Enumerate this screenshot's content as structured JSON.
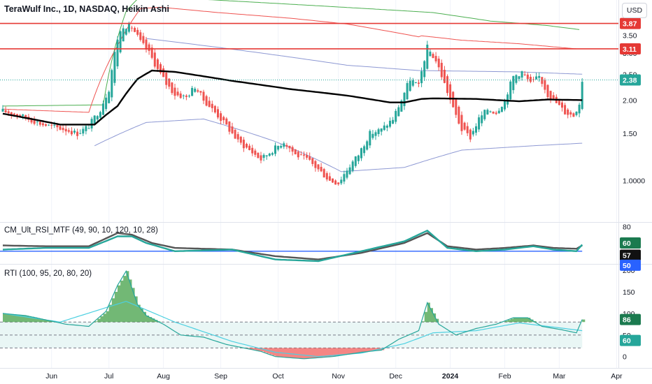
{
  "header": {
    "title": "TeraWulf Inc., 1D, NASDAQ, Heikin Ashi",
    "currency_button": "USD"
  },
  "colors": {
    "up": "#26a69a",
    "down": "#ef5350",
    "hline": "#e53935",
    "current": "#26a69a",
    "ma_thick": "#000000",
    "band_upper": "#ef5350",
    "band_upper2": "#4caf50",
    "band_mid": "#7986cb",
    "rsi_green": "#26a69a",
    "rsi_grey": "#555555",
    "rsi_level": "#2962ff",
    "rti_line": "#26a69a",
    "rti_signal": "#4dd0e1",
    "rti_zone": "#e0f2f1"
  },
  "chart_data": [
    {
      "type": "candlestick",
      "name": "price",
      "title": "TeraWulf Inc., 1D, NASDAQ, Heikin Ashi",
      "y_ticks": [
        "4.00",
        "3.50",
        "3.00",
        "2.50",
        "2.00",
        "1.50",
        "1.0000"
      ],
      "ylim": [
        0.7,
        4.25
      ],
      "scale": "log",
      "x_ticks": [
        "Jun",
        "Jul",
        "Aug",
        "Sep",
        "Oct",
        "Nov",
        "Dec",
        "2024",
        "Feb",
        "Mar",
        "Apr"
      ],
      "horizontal_lines": [
        3.87,
        3.11
      ],
      "current_price": 2.38,
      "price_labels": [
        "3.87",
        "3.11",
        "2.38"
      ],
      "close_path_anchors": [
        [
          0,
          1.82
        ],
        [
          6,
          1.75
        ],
        [
          14,
          1.62
        ],
        [
          22,
          1.55
        ],
        [
          26,
          1.5
        ],
        [
          30,
          1.6
        ],
        [
          34,
          1.85
        ],
        [
          37,
          2.2
        ],
        [
          40,
          3.4
        ],
        [
          42,
          3.8
        ],
        [
          45,
          3.75
        ],
        [
          48,
          3.3
        ],
        [
          51,
          3.0
        ],
        [
          54,
          2.6
        ],
        [
          57,
          2.3
        ],
        [
          60,
          2.1
        ],
        [
          64,
          2.05
        ],
        [
          67,
          2.25
        ],
        [
          70,
          2.0
        ],
        [
          74,
          1.8
        ],
        [
          78,
          1.6
        ],
        [
          82,
          1.4
        ],
        [
          86,
          1.3
        ],
        [
          90,
          1.2
        ],
        [
          94,
          1.3
        ],
        [
          98,
          1.4
        ],
        [
          102,
          1.25
        ],
        [
          106,
          1.2
        ],
        [
          110,
          1.1
        ],
        [
          114,
          1.0
        ],
        [
          117,
          0.98
        ],
        [
          120,
          1.1
        ],
        [
          124,
          1.25
        ],
        [
          128,
          1.5
        ],
        [
          132,
          1.55
        ],
        [
          136,
          1.7
        ],
        [
          139,
          2.0
        ],
        [
          142,
          2.4
        ],
        [
          145,
          2.25
        ],
        [
          148,
          3.15
        ],
        [
          151,
          2.8
        ],
        [
          154,
          2.3
        ],
        [
          157,
          1.85
        ],
        [
          160,
          1.55
        ],
        [
          163,
          1.45
        ],
        [
          166,
          1.7
        ],
        [
          169,
          1.85
        ],
        [
          172,
          1.8
        ],
        [
          175,
          2.0
        ],
        [
          178,
          2.45
        ],
        [
          181,
          2.55
        ],
        [
          184,
          2.3
        ],
        [
          187,
          2.45
        ],
        [
          190,
          2.1
        ],
        [
          193,
          1.95
        ],
        [
          196,
          1.8
        ],
        [
          199,
          1.75
        ],
        [
          201,
          1.95
        ],
        [
          202,
          2.38
        ]
      ],
      "ma_anchors": [
        [
          0,
          1.78
        ],
        [
          20,
          1.62
        ],
        [
          32,
          1.62
        ],
        [
          40,
          1.9
        ],
        [
          47,
          2.4
        ],
        [
          52,
          2.58
        ],
        [
          60,
          2.55
        ],
        [
          80,
          2.36
        ],
        [
          100,
          2.2
        ],
        [
          120,
          2.08
        ],
        [
          135,
          1.96
        ],
        [
          140,
          1.96
        ],
        [
          146,
          2.02
        ],
        [
          150,
          2.03
        ],
        [
          165,
          2.02
        ],
        [
          180,
          1.98
        ],
        [
          190,
          2.01
        ],
        [
          202,
          2.0
        ]
      ],
      "band_red_anchors": [
        [
          0,
          1.85
        ],
        [
          30,
          1.8
        ],
        [
          40,
          3.2
        ],
        [
          48,
          4.4
        ],
        [
          55,
          4.45
        ],
        [
          75,
          4.25
        ],
        [
          100,
          4.05
        ],
        [
          120,
          3.85
        ],
        [
          145,
          3.45
        ],
        [
          146,
          3.48
        ],
        [
          160,
          3.35
        ],
        [
          180,
          3.25
        ],
        [
          194,
          3.15
        ],
        [
          200,
          3.11
        ]
      ],
      "band_green_anchors": [
        [
          0,
          1.9
        ],
        [
          35,
          1.92
        ],
        [
          43,
          4.3
        ],
        [
          48,
          4.9
        ],
        [
          150,
          4.25
        ],
        [
          170,
          3.95
        ],
        [
          190,
          3.8
        ],
        [
          201,
          3.67
        ]
      ],
      "band_blue_upper_anchors": [
        [
          50,
          3.4
        ],
        [
          80,
          3.1
        ],
        [
          120,
          2.7
        ],
        [
          145,
          2.58
        ],
        [
          180,
          2.55
        ],
        [
          202,
          2.5
        ]
      ],
      "band_blue_lower_anchors": [
        [
          32,
          1.35
        ],
        [
          50,
          1.65
        ],
        [
          70,
          1.7
        ],
        [
          95,
          1.4
        ],
        [
          118,
          1.08
        ],
        [
          140,
          1.12
        ],
        [
          160,
          1.3
        ],
        [
          185,
          1.35
        ],
        [
          202,
          1.38
        ]
      ]
    },
    {
      "type": "line",
      "name": "CM_Ult_RSI_MTF",
      "title": "CM_Ult_RSI_MTF (49, 90, 10, 120, 10, 28)",
      "y_ticks": [
        "80"
      ],
      "ylim": [
        38,
        82
      ],
      "level": 50,
      "labels": [
        "60",
        "57",
        "50"
      ],
      "rsi_anchors": [
        [
          0,
          52
        ],
        [
          15,
          54
        ],
        [
          30,
          54
        ],
        [
          40,
          68
        ],
        [
          45,
          68
        ],
        [
          50,
          60
        ],
        [
          60,
          50
        ],
        [
          80,
          52
        ],
        [
          95,
          40
        ],
        [
          110,
          38
        ],
        [
          125,
          50
        ],
        [
          140,
          62
        ],
        [
          148,
          75
        ],
        [
          155,
          54
        ],
        [
          165,
          50
        ],
        [
          175,
          52
        ],
        [
          185,
          56
        ],
        [
          192,
          52
        ],
        [
          200,
          50
        ],
        [
          202,
          58
        ]
      ],
      "rsi2_anchors": [
        [
          0,
          57
        ],
        [
          15,
          56
        ],
        [
          30,
          56
        ],
        [
          40,
          72
        ],
        [
          45,
          70
        ],
        [
          52,
          60
        ],
        [
          60,
          54
        ],
        [
          80,
          52
        ],
        [
          95,
          44
        ],
        [
          110,
          40
        ],
        [
          125,
          48
        ],
        [
          140,
          60
        ],
        [
          148,
          72
        ],
        [
          155,
          56
        ],
        [
          165,
          52
        ],
        [
          175,
          54
        ],
        [
          185,
          57
        ],
        [
          192,
          54
        ],
        [
          200,
          53
        ],
        [
          202,
          57
        ]
      ]
    },
    {
      "type": "area",
      "name": "RTI",
      "title": "RTI (100, 95, 20, 80, 20)",
      "y_ticks": [
        "200",
        "150",
        "100",
        "50",
        "0"
      ],
      "ylim": [
        -15,
        205
      ],
      "levels": [
        80,
        50,
        20
      ],
      "labels": [
        "86",
        "60"
      ],
      "rti_anchors": [
        [
          0,
          100
        ],
        [
          8,
          95
        ],
        [
          15,
          85
        ],
        [
          22,
          75
        ],
        [
          30,
          70
        ],
        [
          36,
          105
        ],
        [
          40,
          165
        ],
        [
          43,
          198
        ],
        [
          47,
          120
        ],
        [
          50,
          95
        ],
        [
          56,
          75
        ],
        [
          62,
          50
        ],
        [
          70,
          45
        ],
        [
          78,
          28
        ],
        [
          90,
          12
        ],
        [
          95,
          0
        ],
        [
          105,
          -5
        ],
        [
          115,
          0
        ],
        [
          125,
          10
        ],
        [
          132,
          15
        ],
        [
          138,
          40
        ],
        [
          145,
          60
        ],
        [
          148,
          125
        ],
        [
          152,
          75
        ],
        [
          158,
          50
        ],
        [
          165,
          65
        ],
        [
          172,
          75
        ],
        [
          178,
          90
        ],
        [
          183,
          90
        ],
        [
          188,
          70
        ],
        [
          195,
          62
        ],
        [
          200,
          55
        ],
        [
          202,
          86
        ]
      ],
      "signal_anchors": [
        [
          0,
          100
        ],
        [
          20,
          80
        ],
        [
          43,
          128
        ],
        [
          60,
          80
        ],
        [
          80,
          35
        ],
        [
          95,
          10
        ],
        [
          110,
          0
        ],
        [
          125,
          8
        ],
        [
          140,
          30
        ],
        [
          150,
          55
        ],
        [
          165,
          60
        ],
        [
          180,
          78
        ],
        [
          190,
          70
        ],
        [
          202,
          60
        ]
      ]
    }
  ]
}
